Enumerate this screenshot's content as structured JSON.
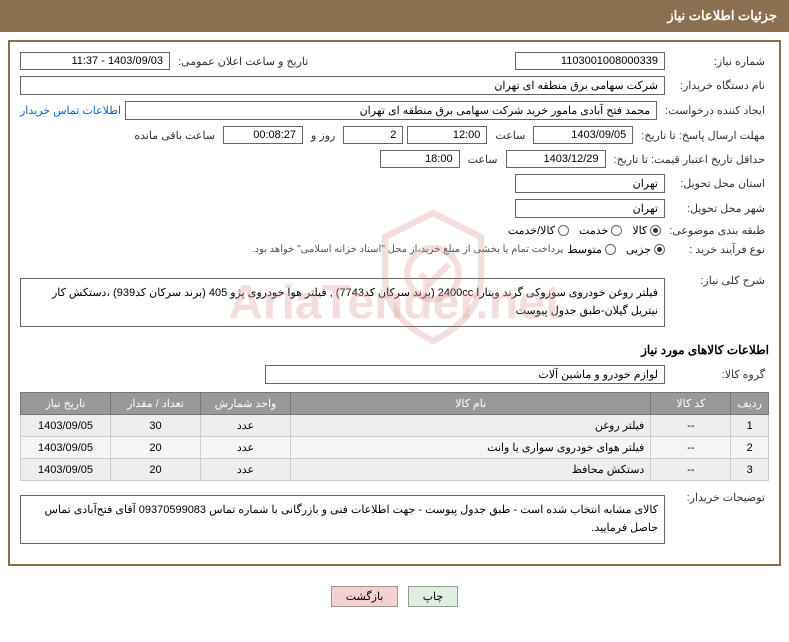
{
  "header": {
    "title": "جزئیات اطلاعات نیاز"
  },
  "fields": {
    "need_number": {
      "label": "شماره نیاز:",
      "value": "1103001008000339"
    },
    "public_date": {
      "label": "تاریخ و ساعت اعلان عمومی:",
      "value": "1403/09/03 - 11:37"
    },
    "buyer_name": {
      "label": "نام دستگاه خریدار:",
      "value": "شرکت سهامی برق منطقه ای تهران"
    },
    "requester": {
      "label": "ایجاد کننده درخواست:",
      "value": "محمد فتح آبادی مامور خرید شرکت سهامی برق منطقه ای تهران"
    },
    "buyer_contact_link": "اطلاعات تماس خریدار",
    "deadline_send": {
      "label": "مهلت ارسال پاسخ: تا تاریخ:",
      "date": "1403/09/05",
      "time_label": "ساعت",
      "time": "12:00",
      "days": "2",
      "days_label": "روز و",
      "countdown": "00:08:27",
      "remain_label": "ساعت باقی مانده"
    },
    "min_validity": {
      "label": "حداقل تاریخ اعتبار قیمت: تا تاریخ:",
      "date": "1403/12/29",
      "time_label": "ساعت",
      "time": "18:00"
    },
    "delivery_province": {
      "label": "استان محل تحویل:",
      "value": "تهران"
    },
    "delivery_city": {
      "label": "شهر محل تحویل:",
      "value": "تهران"
    },
    "category": {
      "label": "طبقه بندی موضوعی:",
      "options": [
        "کالا",
        "خدمت",
        "کالا/خدمت"
      ],
      "selected": 0
    },
    "purchase_type": {
      "label": "نوع فرآیند خرید :",
      "options": [
        "جزیی",
        "متوسط"
      ],
      "selected": 0,
      "note": "پرداخت تمام یا بخشی از مبلغ خرید،از محل \"اسناد خزانه اسلامی\" خواهد بود."
    },
    "general_desc": {
      "label": "شرح کلی نیاز:",
      "value": "فیلتر روغن خودروی سوزوکی گرند ویتارا 2400cc (برند سرکان کد7743) , فیلتر هوا خودروی پژو 405 (برند سرکان کد939) ،دستکش کار نیتریل گیلان-طبق جدول پیوست"
    },
    "goods_info_title": "اطلاعات کالاهای مورد نیاز",
    "goods_group": {
      "label": "گروه کالا:",
      "value": "لوازم خودرو و ماشین آلات"
    },
    "buyer_notes": {
      "label": "توضیحات خریدار:",
      "value": "کالای مشابه انتخاب شده است - طبق جدول پیوست - جهت اطلاعات فنی و بازرگانی با شماره تماس 09370599083 آقای فتح‌آبادی تماس حاصل فرمایید."
    }
  },
  "table": {
    "headers": [
      "ردیف",
      "کد کالا",
      "نام کالا",
      "واحد شمارش",
      "تعداد / مقدار",
      "تاریخ نیاز"
    ],
    "rows": [
      {
        "idx": "1",
        "code": "--",
        "name": "فیلتر روغن",
        "unit": "عدد",
        "qty": "30",
        "date": "1403/09/05"
      },
      {
        "idx": "2",
        "code": "--",
        "name": "فیلتر هوای خودروی سواری یا وانت",
        "unit": "عدد",
        "qty": "20",
        "date": "1403/09/05"
      },
      {
        "idx": "3",
        "code": "--",
        "name": "دستکش محافظ",
        "unit": "عدد",
        "qty": "20",
        "date": "1403/09/05"
      }
    ]
  },
  "buttons": {
    "print": "چاپ",
    "back": "بازگشت"
  },
  "watermark": {
    "text": "AriaTender.net"
  },
  "colors": {
    "header_bg": "#8a7050",
    "table_header_bg": "#999999"
  }
}
